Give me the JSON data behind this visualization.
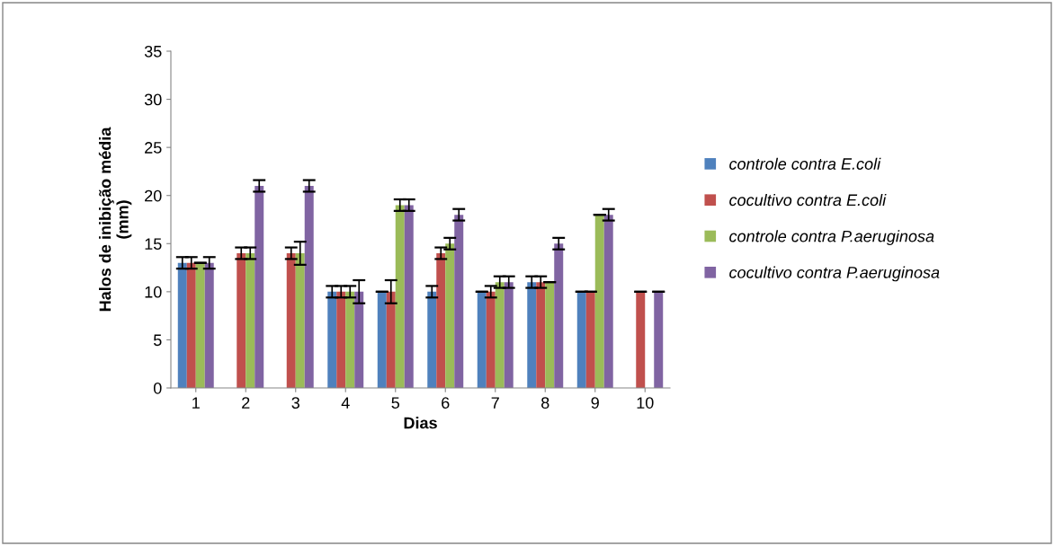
{
  "chart_data": {
    "type": "bar",
    "xlabel": "Dias",
    "ylabel": "Halos de inibição média\n(mm)",
    "categories": [
      "1",
      "2",
      "3",
      "4",
      "5",
      "6",
      "7",
      "8",
      "9",
      "10"
    ],
    "series": [
      {
        "name": "controle contra E.coli",
        "color": "#4f81bd",
        "values": [
          13,
          null,
          null,
          10,
          10,
          10,
          10,
          11,
          10,
          null
        ],
        "errors": [
          0.6,
          null,
          null,
          0.6,
          0,
          0.6,
          0,
          0.6,
          0,
          null
        ]
      },
      {
        "name": "cocultivo contra E.coli",
        "color": "#c0504d",
        "values": [
          13,
          14,
          14,
          10,
          10,
          14,
          10,
          11,
          10,
          10
        ],
        "errors": [
          0.6,
          0.6,
          0.6,
          0.6,
          1.2,
          0.6,
          0.6,
          0.6,
          0,
          0
        ]
      },
      {
        "name": "controle contra P.aeruginosa",
        "color": "#9bbb59",
        "values": [
          13,
          14,
          14,
          10,
          19,
          15,
          11,
          11,
          18,
          null
        ],
        "errors": [
          0,
          0.6,
          1.2,
          0.6,
          0.6,
          0.6,
          0.6,
          0,
          0,
          null
        ]
      },
      {
        "name": "cocultivo contra P.aeruginosa",
        "color": "#8064a2",
        "values": [
          13,
          21,
          21,
          10,
          19,
          18,
          11,
          15,
          18,
          10
        ],
        "errors": [
          0.6,
          0.6,
          0.6,
          1.2,
          0.6,
          0.6,
          0.6,
          0.6,
          0.6,
          0
        ]
      }
    ],
    "ylim": [
      0,
      35
    ],
    "yticks": [
      0,
      5,
      10,
      15,
      20,
      25,
      30,
      35
    ],
    "grid": false,
    "legend": "right"
  }
}
